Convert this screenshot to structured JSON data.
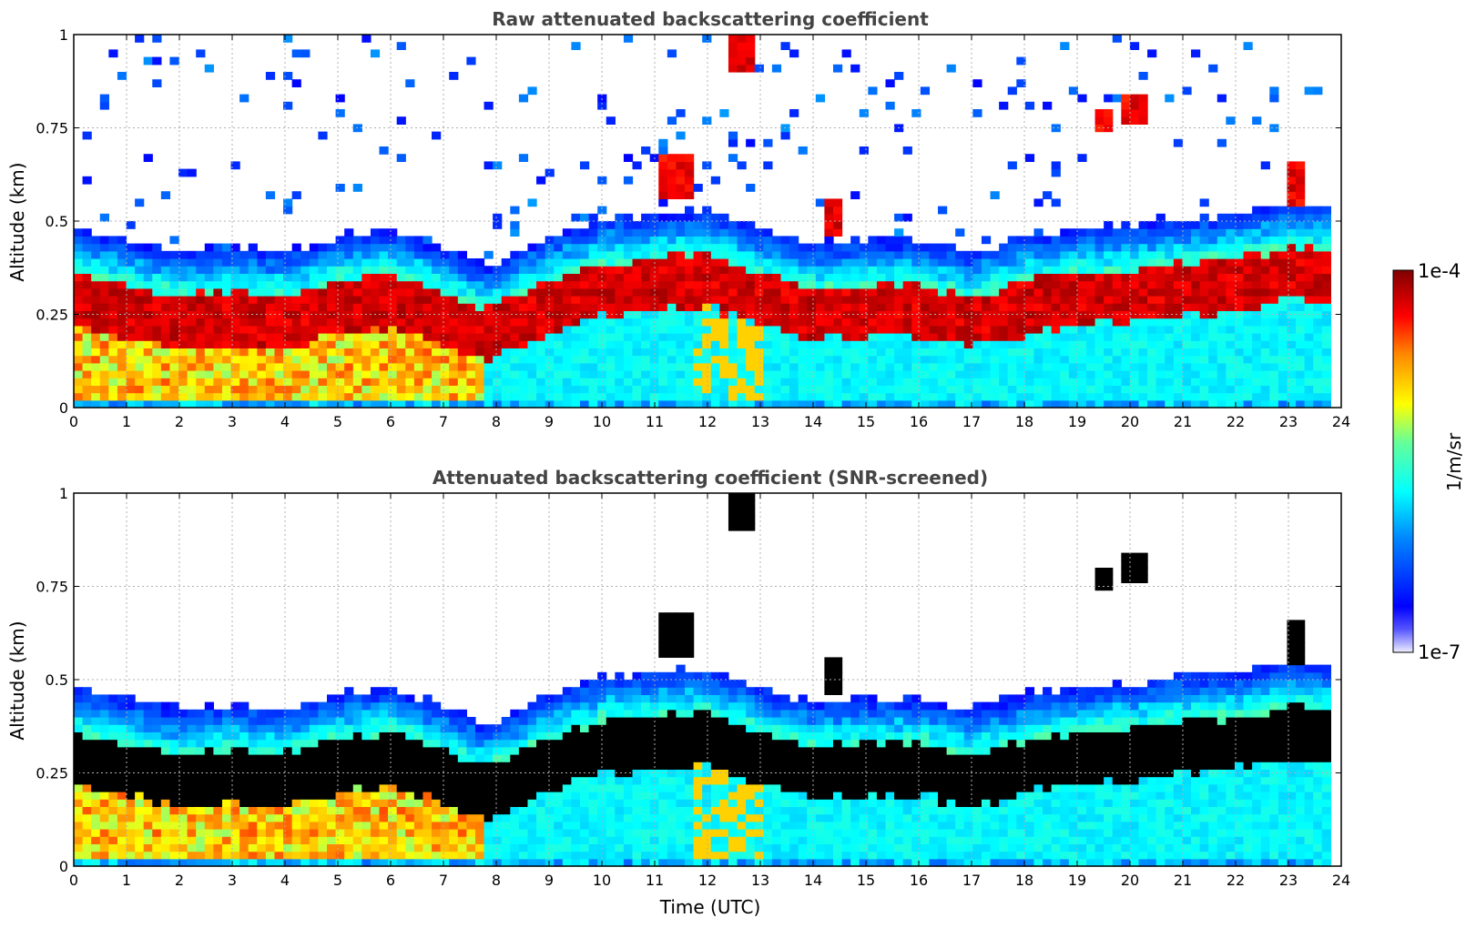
{
  "chart_data": [
    {
      "type": "heatmap",
      "title": "Raw attenuated backscattering coefficient",
      "xlabel": "",
      "ylabel": "Altitude (km)",
      "xlim": [
        0,
        24
      ],
      "ylim": [
        0,
        1
      ],
      "xticks": [
        "0",
        "1",
        "2",
        "3",
        "4",
        "5",
        "6",
        "7",
        "8",
        "9",
        "10",
        "11",
        "12",
        "13",
        "14",
        "15",
        "16",
        "17",
        "18",
        "19",
        "20",
        "21",
        "22",
        "23",
        "24"
      ],
      "yticks": [
        "0",
        "0.25",
        "0.5",
        "0.75",
        "1"
      ],
      "grid": true,
      "screened": false,
      "data_end_time": 23.8,
      "boundary_layer_top_km": [
        [
          0,
          0.3
        ],
        [
          1,
          0.27
        ],
        [
          2,
          0.24
        ],
        [
          3,
          0.25
        ],
        [
          4,
          0.24
        ],
        [
          5,
          0.28
        ],
        [
          6,
          0.3
        ],
        [
          7,
          0.25
        ],
        [
          7.8,
          0.2
        ],
        [
          9,
          0.28
        ],
        [
          10,
          0.33
        ],
        [
          11,
          0.34
        ],
        [
          12,
          0.35
        ],
        [
          13,
          0.3
        ],
        [
          14,
          0.26
        ],
        [
          15,
          0.27
        ],
        [
          16,
          0.27
        ],
        [
          17,
          0.24
        ],
        [
          18,
          0.28
        ],
        [
          19,
          0.3
        ],
        [
          20,
          0.31
        ],
        [
          21,
          0.33
        ],
        [
          22,
          0.34
        ],
        [
          23,
          0.37
        ],
        [
          23.8,
          0.36
        ]
      ],
      "cloud_features": [
        {
          "t": [
            11.1,
            11.7
          ],
          "alt_km": [
            0.57,
            0.67
          ]
        },
        {
          "t": [
            12.35,
            12.85
          ],
          "alt_km": [
            0.9,
            1.0
          ]
        },
        {
          "t": [
            14.2,
            14.5
          ],
          "alt_km": [
            0.46,
            0.56
          ]
        },
        {
          "t": [
            19.3,
            19.7
          ],
          "alt_km": [
            0.74,
            0.8
          ]
        },
        {
          "t": [
            19.9,
            20.35
          ],
          "alt_km": [
            0.77,
            0.83
          ]
        },
        {
          "t": [
            22.9,
            23.3
          ],
          "alt_km": [
            0.55,
            0.66
          ]
        }
      ]
    },
    {
      "type": "heatmap",
      "title": "Attenuated backscattering coefficient (SNR-screened)",
      "xlabel": "Time (UTC)",
      "ylabel": "Altitude (km)",
      "xlim": [
        0,
        24
      ],
      "ylim": [
        0,
        1
      ],
      "xticks": [
        "0",
        "1",
        "2",
        "3",
        "4",
        "5",
        "6",
        "7",
        "8",
        "9",
        "10",
        "11",
        "12",
        "13",
        "14",
        "15",
        "16",
        "17",
        "18",
        "19",
        "20",
        "21",
        "22",
        "23",
        "24"
      ],
      "yticks": [
        "0",
        "0.25",
        "0.5",
        "0.75",
        "1"
      ],
      "grid": true,
      "screened": true,
      "data_end_time": 23.8
    }
  ],
  "colorbar": {
    "label": "1/m/sr",
    "max_label": "1e-4",
    "min_label": "1e-7",
    "scale": "log",
    "range": [
      1e-07,
      0.0001
    ],
    "colormap": "jet"
  }
}
